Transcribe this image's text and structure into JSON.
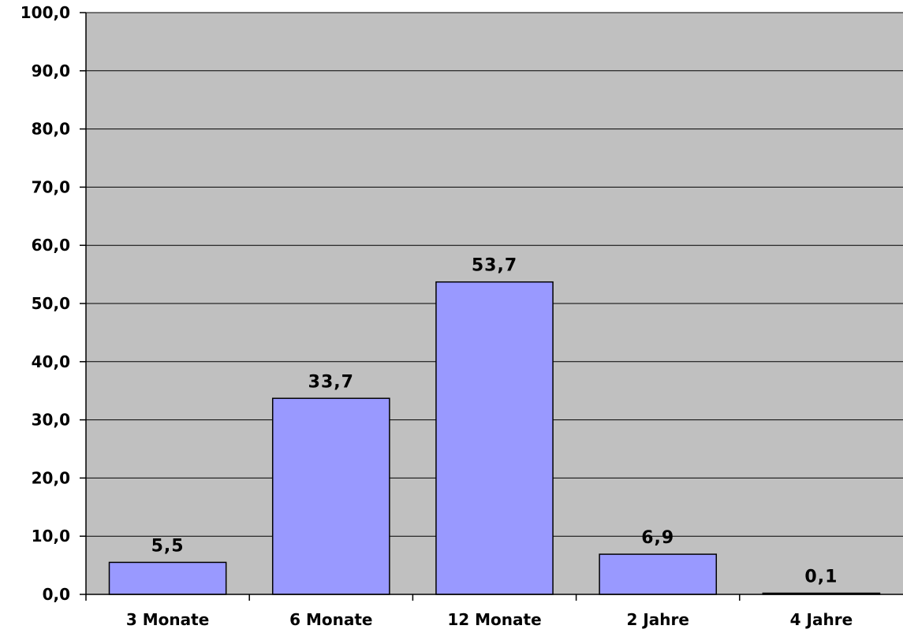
{
  "colors": {
    "plot_background": "#c0c0c0",
    "bar_fill": "#9999ff",
    "bar_stroke": "#000000",
    "gridline": "#000000"
  },
  "chart_data": {
    "type": "bar",
    "categories": [
      "3 Monate",
      "6 Monate",
      "12 Monate",
      "2 Jahre",
      "4 Jahre"
    ],
    "values": [
      5.5,
      33.7,
      53.7,
      6.9,
      0.1
    ],
    "value_labels": [
      "5,5",
      "33,7",
      "53,7",
      "6,9",
      "0,1"
    ],
    "title": "",
    "xlabel": "",
    "ylabel": "",
    "ylim": [
      0,
      100
    ],
    "y_ticks": [
      0,
      10,
      20,
      30,
      40,
      50,
      60,
      70,
      80,
      90,
      100
    ],
    "y_tick_labels": [
      "0,0",
      "10,0",
      "20,0",
      "30,0",
      "40,0",
      "50,0",
      "60,0",
      "70,0",
      "80,0",
      "90,0",
      "100,0"
    ],
    "grid": true,
    "legend": "none"
  }
}
